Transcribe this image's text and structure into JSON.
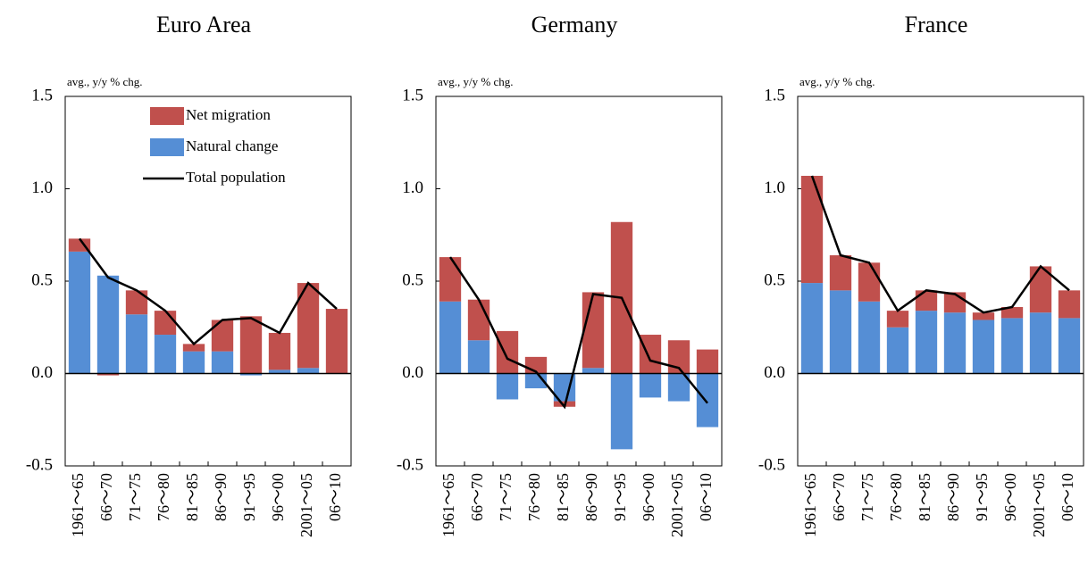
{
  "chart_data": [
    {
      "type": "bar",
      "stacked": true,
      "title": "Euro Area",
      "ylabel": "avg., y/y % chg.",
      "categories": [
        "1961～65",
        "66～70",
        "71～75",
        "76～80",
        "81～85",
        "86～90",
        "91～95",
        "96～00",
        "2001～05",
        "06～10"
      ],
      "series": [
        {
          "name": "Net migration",
          "color": "#c0504d",
          "values": [
            0.07,
            -0.01,
            0.13,
            0.13,
            0.04,
            0.17,
            0.31,
            0.2,
            0.46,
            0.35
          ]
        },
        {
          "name": "Natural change",
          "color": "#558ed5",
          "values": [
            0.66,
            0.53,
            0.32,
            0.21,
            0.12,
            0.12,
            -0.01,
            0.02,
            0.03,
            0.0
          ]
        },
        {
          "name": "Total population",
          "type": "line",
          "color": "#000000",
          "values": [
            0.73,
            0.52,
            0.45,
            0.34,
            0.16,
            0.29,
            0.3,
            0.22,
            0.49,
            0.35
          ]
        }
      ],
      "ylim": [
        -0.5,
        1.5
      ],
      "yticks": [
        -0.5,
        {
          "value": 0,
          "label": "0.0"
        },
        0.5,
        {
          "value": 1,
          "label": "1.0"
        },
        1.5
      ],
      "legend": "upper right"
    },
    {
      "type": "bar",
      "stacked": true,
      "title": "Germany",
      "ylabel": "avg., y/y % chg.",
      "categories": [
        "1961～65",
        "66～70",
        "71～75",
        "76～80",
        "81～85",
        "86～90",
        "91～95",
        "96～00",
        "2001～05",
        "06～10"
      ],
      "series": [
        {
          "name": "Net migration",
          "color": "#c0504d",
          "values": [
            0.24,
            0.22,
            0.23,
            0.09,
            -0.03,
            0.41,
            0.82,
            0.21,
            0.18,
            0.13
          ]
        },
        {
          "name": "Natural change",
          "color": "#558ed5",
          "values": [
            0.39,
            0.18,
            -0.14,
            -0.08,
            -0.15,
            0.03,
            -0.41,
            -0.13,
            -0.15,
            -0.29
          ]
        },
        {
          "name": "Total population",
          "type": "line",
          "color": "#000000",
          "values": [
            0.63,
            0.4,
            0.08,
            0.01,
            -0.18,
            0.43,
            0.41,
            0.07,
            0.03,
            -0.16
          ]
        }
      ],
      "ylim": [
        -0.5,
        1.5
      ],
      "yticks": [
        -0.5,
        {
          "value": 0,
          "label": "0.0"
        },
        0.5,
        {
          "value": 1,
          "label": "1.0"
        },
        1.5
      ]
    },
    {
      "type": "bar",
      "stacked": true,
      "title": "France",
      "ylabel": "avg., y/y % chg.",
      "categories": [
        "1961～65",
        "66～70",
        "71～75",
        "76～80",
        "81～85",
        "86～90",
        "91～95",
        "96～00",
        "2001～05",
        "06～10"
      ],
      "series": [
        {
          "name": "Net migration",
          "color": "#c0504d",
          "values": [
            0.58,
            0.19,
            0.21,
            0.09,
            0.11,
            0.11,
            0.04,
            0.06,
            0.25,
            0.15
          ]
        },
        {
          "name": "Natural change",
          "color": "#558ed5",
          "values": [
            0.49,
            0.45,
            0.39,
            0.25,
            0.34,
            0.33,
            0.29,
            0.3,
            0.33,
            0.3
          ]
        },
        {
          "name": "Total population",
          "type": "line",
          "color": "#000000",
          "values": [
            1.07,
            0.64,
            0.6,
            0.34,
            0.45,
            0.43,
            0.33,
            0.36,
            0.58,
            0.45
          ]
        }
      ],
      "ylim": [
        -0.5,
        1.5
      ],
      "yticks": [
        -0.5,
        {
          "value": 0,
          "label": "0.0"
        },
        0.5,
        {
          "value": 1,
          "label": "1.0"
        },
        1.5
      ]
    }
  ]
}
